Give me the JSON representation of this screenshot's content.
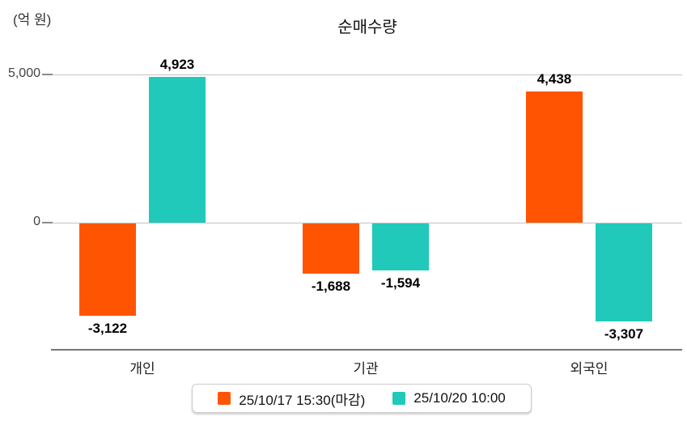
{
  "unit_label": "(억 원)",
  "title": "순매수량",
  "y_axis": {
    "ticks": [
      {
        "value": 5000,
        "label": "5,000"
      },
      {
        "value": 0,
        "label": "0"
      }
    ]
  },
  "chart_data": {
    "type": "bar",
    "title": "순매수량",
    "ylabel": "(억 원)",
    "categories": [
      "개인",
      "기관",
      "외국인"
    ],
    "series": [
      {
        "name": "25/10/17 15:30(마감)",
        "color": "#FF5502",
        "values": [
          -3122,
          -1688,
          4438
        ],
        "labels": [
          "-3,122",
          "-1,688",
          "4,438"
        ]
      },
      {
        "name": "25/10/20 10:00",
        "color": "#20C9B9",
        "values": [
          4923,
          -1594,
          -3307
        ],
        "labels": [
          "4,923",
          "-1,594",
          "-3,307"
        ]
      }
    ],
    "ylim": [
      -4300,
      5900
    ],
    "gridlines": [
      5000,
      0
    ],
    "grid": "horizontal",
    "legend_position": "bottom"
  },
  "legend": {
    "items": [
      {
        "label": "25/10/17 15:30(마감)",
        "color": "#FF5502"
      },
      {
        "label": "25/10/20 10:00",
        "color": "#20C9B9"
      }
    ]
  }
}
